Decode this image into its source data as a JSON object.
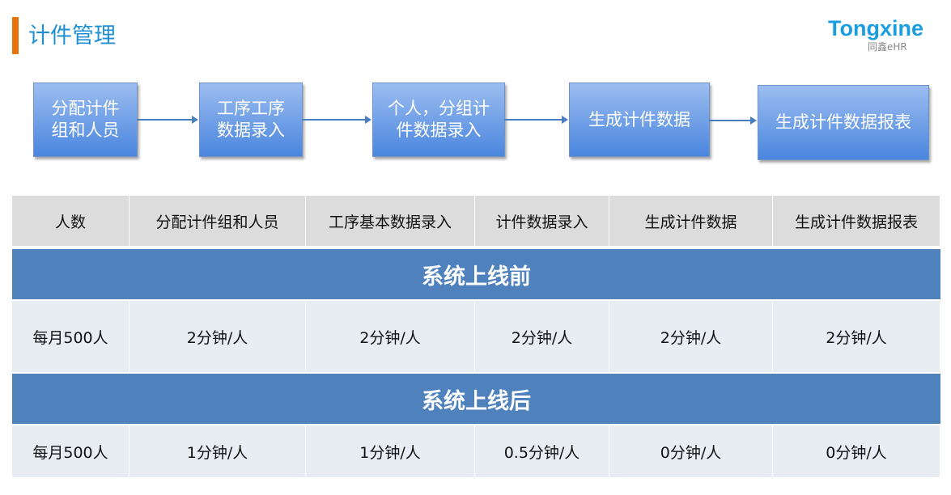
{
  "header": {
    "title": "计件管理",
    "logo": {
      "wordmark": "Tongxine",
      "sub": "同鑫eHR"
    }
  },
  "flow": [
    "分配计件组和人员",
    "工序工序数据录入",
    "个人，分组计件数据录入",
    "生成计件数据",
    "生成计件数据报表"
  ],
  "flow_lines": [
    [
      "分配计件",
      "组和人员"
    ],
    [
      "工序工序",
      "数据录入"
    ],
    [
      "个人，分组计",
      "件数据录入"
    ],
    [
      "生成计件数据"
    ],
    [
      "生成计件数据报表"
    ]
  ],
  "table": {
    "headers": [
      "人数",
      "分配计件组和人员",
      "工序基本数据录入",
      "计件数据录入",
      "生成计件数据",
      "生成计件数据报表"
    ],
    "sections": [
      {
        "title": "系统上线前",
        "row": [
          "每月500人",
          "2分钟/人",
          "2分钟/人",
          "2分钟/人",
          "2分钟/人",
          "2分钟/人"
        ]
      },
      {
        "title": "系统上线后",
        "row": [
          "每月500人",
          "1分钟/人",
          "1分钟/人",
          "0.5分钟/人",
          "0分钟/人",
          "0分钟/人"
        ]
      }
    ]
  },
  "colors": {
    "accent_bar": "#e8730c",
    "title": "#1f8fd4",
    "band": "#4f81bd"
  }
}
